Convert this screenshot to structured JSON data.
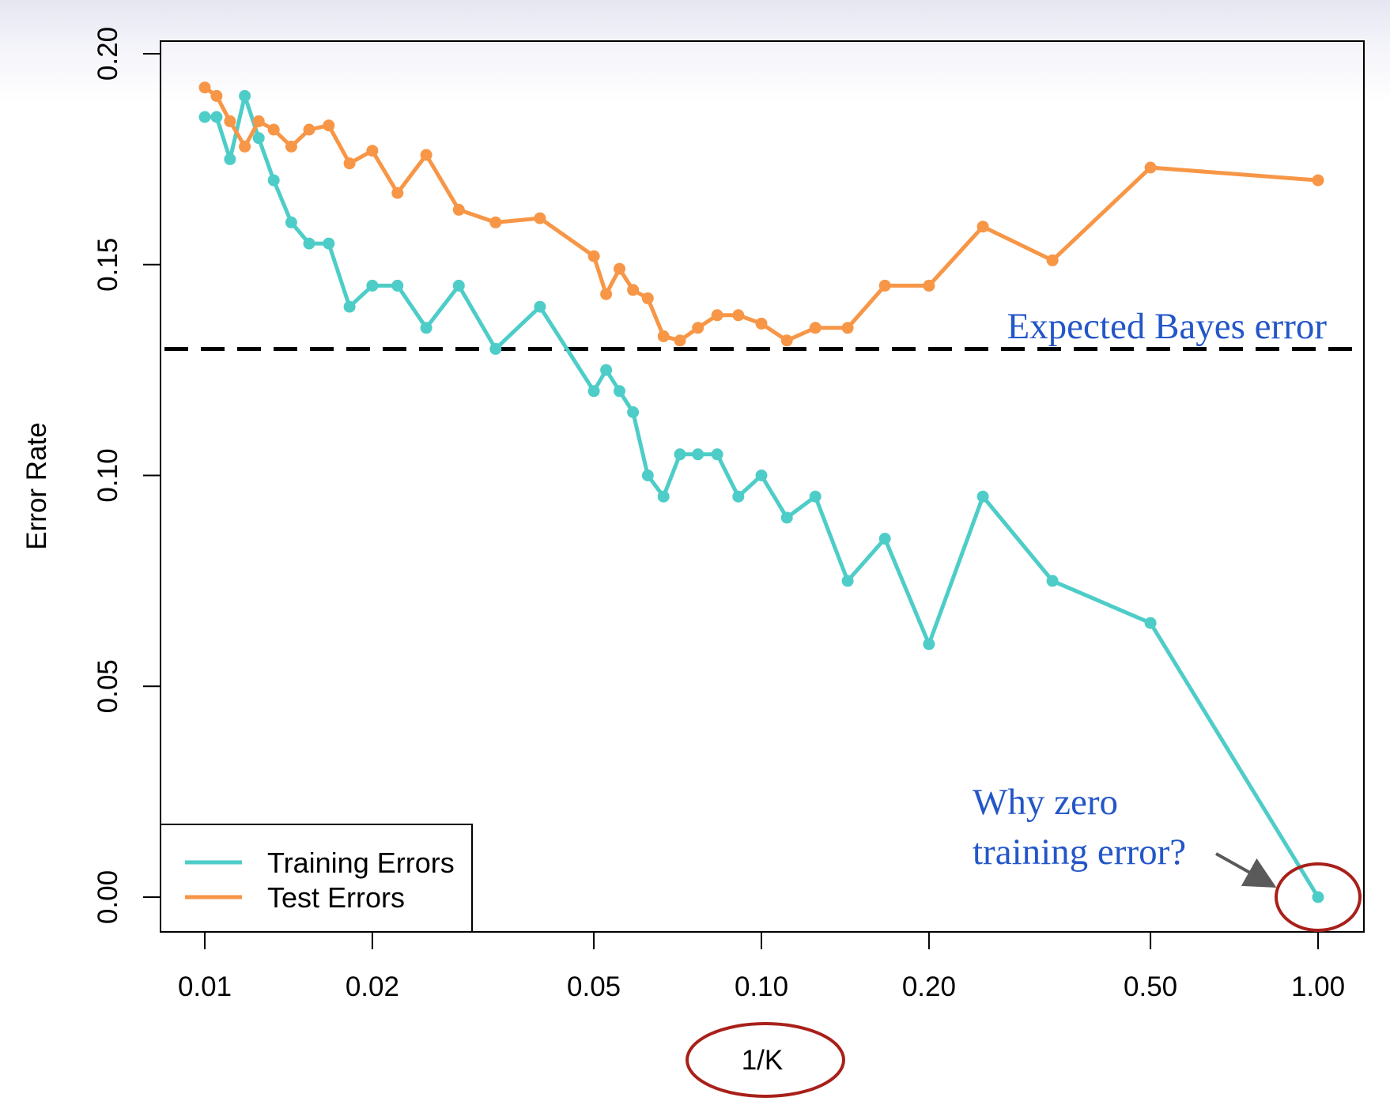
{
  "chart_data": {
    "type": "line",
    "xlabel": "1/K",
    "ylabel": "Error Rate",
    "x_scale": "log",
    "xlim": [
      0.01,
      1.0
    ],
    "ylim": [
      0.0,
      0.2
    ],
    "x_ticks": [
      0.01,
      0.02,
      0.05,
      0.1,
      0.2,
      0.5,
      1.0
    ],
    "x_tick_labels": [
      "0.01",
      "0.02",
      "0.05",
      "0.10",
      "0.20",
      "0.50",
      "1.00"
    ],
    "y_ticks": [
      0.0,
      0.05,
      0.1,
      0.15,
      0.2
    ],
    "y_tick_labels": [
      "0.00",
      "0.05",
      "0.10",
      "0.15",
      "0.20"
    ],
    "grid": false,
    "legend_position": "bottom-left",
    "series": [
      {
        "name": "Training Errors",
        "color": "#4ecdc8",
        "x": [
          0.01,
          0.0105,
          0.0111,
          0.0118,
          0.0125,
          0.0133,
          0.0143,
          0.0154,
          0.0167,
          0.0182,
          0.02,
          0.0222,
          0.025,
          0.0286,
          0.0333,
          0.04,
          0.05,
          0.0526,
          0.0556,
          0.0588,
          0.0625,
          0.0667,
          0.0714,
          0.0769,
          0.0833,
          0.0909,
          0.1,
          0.1111,
          0.125,
          0.1429,
          0.1667,
          0.2,
          0.25,
          0.3333,
          0.5,
          1.0
        ],
        "y": [
          0.185,
          0.185,
          0.175,
          0.19,
          0.18,
          0.17,
          0.16,
          0.155,
          0.155,
          0.14,
          0.145,
          0.145,
          0.135,
          0.145,
          0.13,
          0.14,
          0.12,
          0.125,
          0.12,
          0.115,
          0.1,
          0.095,
          0.105,
          0.105,
          0.105,
          0.095,
          0.1,
          0.09,
          0.095,
          0.075,
          0.085,
          0.06,
          0.095,
          0.075,
          0.065,
          0.0
        ]
      },
      {
        "name": "Test Errors",
        "color": "#f79646",
        "x": [
          0.01,
          0.0105,
          0.0111,
          0.0118,
          0.0125,
          0.0133,
          0.0143,
          0.0154,
          0.0167,
          0.0182,
          0.02,
          0.0222,
          0.025,
          0.0286,
          0.0333,
          0.04,
          0.05,
          0.0526,
          0.0556,
          0.0588,
          0.0625,
          0.0667,
          0.0714,
          0.0769,
          0.0833,
          0.0909,
          0.1,
          0.1111,
          0.125,
          0.1429,
          0.1667,
          0.2,
          0.25,
          0.3333,
          0.5,
          1.0
        ],
        "y": [
          0.192,
          0.19,
          0.184,
          0.178,
          0.184,
          0.182,
          0.178,
          0.182,
          0.183,
          0.174,
          0.177,
          0.167,
          0.176,
          0.163,
          0.16,
          0.161,
          0.152,
          0.143,
          0.149,
          0.144,
          0.142,
          0.133,
          0.132,
          0.135,
          0.138,
          0.138,
          0.136,
          0.132,
          0.135,
          0.135,
          0.145,
          0.145,
          0.159,
          0.151,
          0.173,
          0.17
        ]
      }
    ],
    "reference_line": {
      "y": 0.13,
      "label": "Expected Bayes error",
      "color": "#000000",
      "label_color": "#2356c8"
    },
    "annotation": {
      "lines": [
        "Why zero",
        "training error?"
      ],
      "color": "#2356c8",
      "target_x": 1.0,
      "target_y": 0.0
    },
    "highlight_color": "#a8201a"
  }
}
